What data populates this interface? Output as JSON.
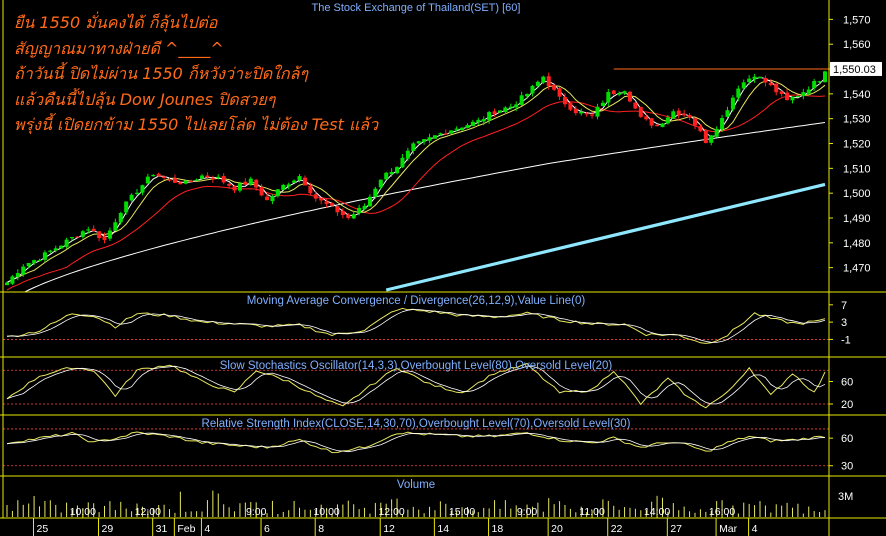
{
  "chart_title": "The Stock Exchange of Thailand(SET) [60]",
  "overlay_lines": [
    "ยืน 1550 มั่นคงได้ ก็ลุ้นไปต่อ",
    "สัญญาณมาทางฝ่ายดี ^____^",
    "ถ้าวันนี้ ปิดไม่ผ่าน 1550 ก็หวังว่าะปิดใกล้ๆ",
    "แล้วคืนนี้ไปลุ้น Dow Jounes ปิดสวยๆ",
    "พรุ่งนี้ เปิดยกข้าม 1550 ไปเลยโล่ด ไม่ต้อง Test แล้ว"
  ],
  "colors": {
    "background": "#000000",
    "frame": "#e8e800",
    "candle_up": "#00e000",
    "candle_down": "#ff2020",
    "ma_fast": "#ffffff",
    "ma_mid": "#e8e860",
    "ma_red": "#ff2020",
    "ma_slow": "#ffffff",
    "ma_long": "#8fe8ff",
    "resistance": "#ff6a1a",
    "indicator": "#e8e860",
    "indicator2": "#ffffff",
    "level": "#ff4040",
    "title": "#7fb0ff",
    "axis_text": "#ffffff"
  },
  "chart_data": {
    "type": "candlestick",
    "price_panel": {
      "title": "The Stock Exchange of Thailand(SET) [60]",
      "y_ticks": [
        1470,
        1480,
        1490,
        1500,
        1510,
        1520,
        1530,
        1540,
        1550,
        1560,
        1570
      ],
      "ylim": [
        1461,
        1577
      ],
      "last_price_label": "1,550.03",
      "resistance_level": 1550,
      "close_path": [
        [
          0,
          1464
        ],
        [
          3,
          1471
        ],
        [
          6,
          1474
        ],
        [
          9,
          1478
        ],
        [
          12,
          1482
        ],
        [
          15,
          1486
        ],
        [
          18,
          1481
        ],
        [
          21,
          1493
        ],
        [
          24,
          1501
        ],
        [
          27,
          1508
        ],
        [
          30,
          1505
        ],
        [
          33,
          1504
        ],
        [
          36,
          1507
        ],
        [
          39,
          1506
        ],
        [
          42,
          1502
        ],
        [
          45,
          1505
        ],
        [
          48,
          1497
        ],
        [
          51,
          1503
        ],
        [
          54,
          1507
        ],
        [
          57,
          1498
        ],
        [
          60,
          1494
        ],
        [
          63,
          1490
        ],
        [
          66,
          1495
        ],
        [
          69,
          1506
        ],
        [
          72,
          1511
        ],
        [
          75,
          1519
        ],
        [
          78,
          1522
        ],
        [
          81,
          1525
        ],
        [
          84,
          1527
        ],
        [
          87,
          1529
        ],
        [
          90,
          1533
        ],
        [
          93,
          1535
        ],
        [
          96,
          1540
        ],
        [
          99,
          1547
        ],
        [
          102,
          1538
        ],
        [
          105,
          1533
        ],
        [
          108,
          1531
        ],
        [
          111,
          1540
        ],
        [
          114,
          1542
        ],
        [
          117,
          1530
        ],
        [
          120,
          1527
        ],
        [
          123,
          1533
        ],
        [
          126,
          1531
        ],
        [
          129,
          1521
        ],
        [
          132,
          1530
        ],
        [
          135,
          1543
        ],
        [
          138,
          1548
        ],
        [
          141,
          1543
        ],
        [
          144,
          1537
        ],
        [
          147,
          1541
        ],
        [
          150,
          1546
        ],
        [
          151,
          1550
        ]
      ],
      "ma_long": {
        "start": [
          70,
          1461
        ],
        "end": [
          151,
          1503.5
        ]
      }
    },
    "macd_panel": {
      "title": "Moving Average Convergence / Divergence(26,12,9),Value Line(0)",
      "y_ticks": [
        7,
        3,
        -1
      ],
      "ylim": [
        -4.6,
        9.5
      ],
      "level_lines": [
        -1
      ],
      "series": [
        [
          0,
          -0.5
        ],
        [
          6,
          1
        ],
        [
          12,
          5
        ],
        [
          16,
          4.5
        ],
        [
          20,
          2
        ],
        [
          24,
          5
        ],
        [
          30,
          4.5
        ],
        [
          36,
          3
        ],
        [
          42,
          2.6
        ],
        [
          48,
          2
        ],
        [
          54,
          2.3
        ],
        [
          60,
          0
        ],
        [
          66,
          1.2
        ],
        [
          72,
          6
        ],
        [
          78,
          5.5
        ],
        [
          84,
          4.5
        ],
        [
          90,
          4.2
        ],
        [
          96,
          5
        ],
        [
          102,
          3.5
        ],
        [
          108,
          2.6
        ],
        [
          114,
          2.5
        ],
        [
          118,
          0.2
        ],
        [
          124,
          0
        ],
        [
          129,
          -2
        ],
        [
          133,
          0
        ],
        [
          138,
          5
        ],
        [
          142,
          3.5
        ],
        [
          146,
          2.6
        ],
        [
          151,
          3.5
        ]
      ]
    },
    "stochastic_panel": {
      "title": "Slow Stochastics Oscillator(14,3,3),Overbought Level(80),Oversold Level(20)",
      "y_ticks": [
        60,
        20
      ],
      "ylim": [
        4,
        100
      ],
      "level_lines": [
        80,
        20
      ],
      "series": [
        [
          0,
          30
        ],
        [
          6,
          70
        ],
        [
          12,
          85
        ],
        [
          16,
          80
        ],
        [
          20,
          35
        ],
        [
          24,
          80
        ],
        [
          30,
          90
        ],
        [
          36,
          60
        ],
        [
          42,
          40
        ],
        [
          46,
          80
        ],
        [
          52,
          60
        ],
        [
          58,
          30
        ],
        [
          62,
          15
        ],
        [
          66,
          45
        ],
        [
          72,
          85
        ],
        [
          78,
          55
        ],
        [
          84,
          40
        ],
        [
          90,
          75
        ],
        [
          96,
          90
        ],
        [
          102,
          40
        ],
        [
          108,
          45
        ],
        [
          112,
          80
        ],
        [
          117,
          20
        ],
        [
          122,
          65
        ],
        [
          126,
          30
        ],
        [
          129,
          15
        ],
        [
          133,
          40
        ],
        [
          137,
          85
        ],
        [
          141,
          35
        ],
        [
          145,
          75
        ],
        [
          149,
          40
        ],
        [
          151,
          75
        ]
      ]
    },
    "rsi_panel": {
      "title": "Relative Strength Index(CLOSE,14,30,70),Overbought Level(70),Oversold Level(30)",
      "y_ticks": [
        60,
        30
      ],
      "ylim": [
        21,
        83
      ],
      "level_lines": [
        70,
        30
      ],
      "series": [
        [
          0,
          55
        ],
        [
          6,
          60
        ],
        [
          12,
          65
        ],
        [
          16,
          55
        ],
        [
          20,
          60
        ],
        [
          24,
          66
        ],
        [
          30,
          62
        ],
        [
          36,
          55
        ],
        [
          42,
          52
        ],
        [
          48,
          50
        ],
        [
          54,
          58
        ],
        [
          60,
          45
        ],
        [
          66,
          50
        ],
        [
          72,
          66
        ],
        [
          78,
          64
        ],
        [
          84,
          62
        ],
        [
          90,
          62
        ],
        [
          96,
          66
        ],
        [
          102,
          58
        ],
        [
          108,
          55
        ],
        [
          112,
          60
        ],
        [
          117,
          50
        ],
        [
          122,
          56
        ],
        [
          126,
          52
        ],
        [
          129,
          45
        ],
        [
          133,
          55
        ],
        [
          137,
          62
        ],
        [
          141,
          57
        ],
        [
          145,
          58
        ],
        [
          151,
          62
        ]
      ]
    },
    "volume_panel": {
      "title": "Volume",
      "y_ticks": [
        "3M"
      ]
    },
    "x_axis": {
      "time_labels": [
        "10:00",
        "12:00",
        "9:00",
        "10:00",
        "12:00",
        "15:00",
        "9:00",
        "11:00",
        "14:00",
        "16:00"
      ],
      "time_label_bars": [
        14,
        26,
        46,
        59,
        71,
        84,
        96,
        108,
        120,
        132
      ],
      "date_labels": [
        "25",
        "29",
        "31",
        "Feb",
        "4",
        "6",
        "8",
        "12",
        "14",
        "18",
        "20",
        "22",
        "27",
        "Mar",
        "4"
      ],
      "date_label_bars": [
        6,
        18,
        28,
        32,
        37,
        48,
        58,
        70,
        80,
        90,
        101,
        112,
        123,
        132,
        138
      ]
    }
  }
}
